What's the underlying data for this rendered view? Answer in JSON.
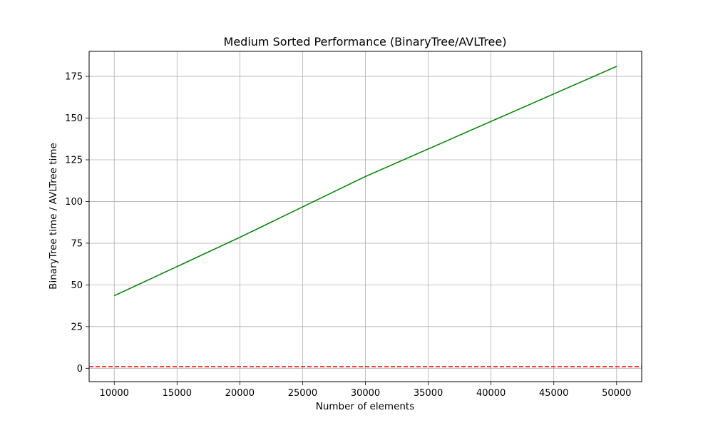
{
  "chart_data": {
    "type": "line",
    "title": "Medium Sorted Performance (BinaryTree/AVLTree)",
    "xlabel": "Number of elements",
    "ylabel": "BinaryTree time / AVLTree time",
    "xlim": [
      8000,
      52000
    ],
    "ylim": [
      -8,
      190
    ],
    "x_ticks": [
      10000,
      15000,
      20000,
      25000,
      30000,
      35000,
      40000,
      45000,
      50000
    ],
    "y_ticks": [
      0,
      25,
      50,
      75,
      100,
      125,
      150,
      175
    ],
    "grid": true,
    "series": [
      {
        "x": [
          10000,
          20000,
          30000,
          40000,
          50000
        ],
        "values": [
          43.5,
          78.5,
          115,
          148,
          181
        ],
        "color": "#008000",
        "line_style": "solid"
      }
    ],
    "reference_lines": [
      {
        "y": 1,
        "color": "#ff0000",
        "line_style": "dashed"
      }
    ]
  }
}
